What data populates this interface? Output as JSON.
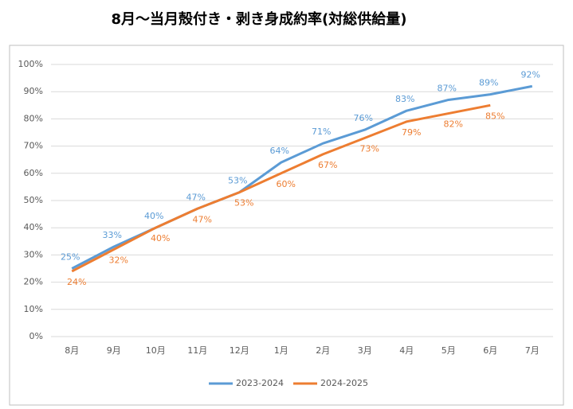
{
  "chart_data": {
    "type": "line",
    "title": "8月～当月殻付き・剥き身成約率(対総供給量)",
    "categories": [
      "8月",
      "9月",
      "10月",
      "11月",
      "12月",
      "1月",
      "2月",
      "3月",
      "4月",
      "5月",
      "6月",
      "7月"
    ],
    "series": [
      {
        "name": "2023-2024",
        "color": "#5b9bd5",
        "values": [
          25,
          33,
          40,
          47,
          53,
          64,
          71,
          76,
          83,
          87,
          89,
          92
        ],
        "value_labels": [
          "25%",
          "33%",
          "40%",
          "47%",
          "53%",
          "64%",
          "71%",
          "76%",
          "83%",
          "87%",
          "89%",
          "92%"
        ]
      },
      {
        "name": "2024-2025",
        "color": "#ed7d31",
        "values": [
          24,
          32,
          40,
          47,
          53,
          60,
          67,
          73,
          79,
          82,
          85,
          null
        ],
        "value_labels": [
          "24%",
          "32%",
          "40%",
          "47%",
          "53%",
          "60%",
          "67%",
          "73%",
          "79%",
          "82%",
          "85%",
          null
        ]
      }
    ],
    "ylim": [
      0,
      100
    ],
    "yticks": [
      {
        "value": 0,
        "label": "0%"
      },
      {
        "value": 10,
        "label": "10%"
      },
      {
        "value": 20,
        "label": "20%"
      },
      {
        "value": 30,
        "label": "30%"
      },
      {
        "value": 40,
        "label": "40%"
      },
      {
        "value": 50,
        "label": "50%"
      },
      {
        "value": 60,
        "label": "60%"
      },
      {
        "value": 70,
        "label": "70%"
      },
      {
        "value": 80,
        "label": "80%"
      },
      {
        "value": 90,
        "label": "90%"
      },
      {
        "value": 100,
        "label": "100%"
      }
    ],
    "grid": true,
    "legend": "bottom"
  }
}
